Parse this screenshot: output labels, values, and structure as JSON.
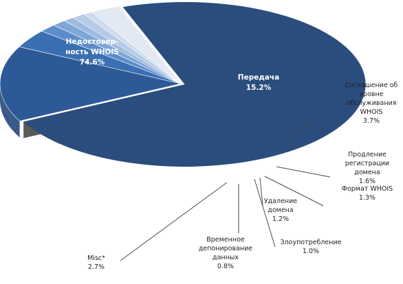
{
  "chart_data": {
    "type": "pie",
    "title": "",
    "style": "3d-exploded",
    "slices": [
      {
        "label_lines": [
          "Недостовер-",
          "ность WHOIS",
          "74.6%"
        ],
        "value": 74.6,
        "color": "#2b4d7e"
      },
      {
        "label_lines": [
          "Передача",
          "15.2%"
        ],
        "value": 15.2,
        "color": "#2d5a96"
      },
      {
        "label_lines": [
          "Соглашение об",
          "уровне",
          "обслуживания",
          "WHOIS",
          "3.7%"
        ],
        "value": 3.7,
        "color": "#3b6fb3"
      },
      {
        "label_lines": [
          "Продление",
          "регистрации",
          "домена",
          "1.6%"
        ],
        "value": 1.6,
        "color": "#5c8dc8"
      },
      {
        "label_lines": [
          "Формат WHOIS",
          "1.3%"
        ],
        "value": 1.3,
        "color": "#7fa6d6"
      },
      {
        "label_lines": [
          "Злоупотребление",
          "1.0%"
        ],
        "value": 1.0,
        "color": "#9dbbe0"
      },
      {
        "label_lines": [
          "Удаление",
          "домена",
          "1.2%"
        ],
        "value": 1.2,
        "color": "#b6cbe7"
      },
      {
        "label_lines": [
          "Временное",
          "депонирование",
          "данных",
          "0.8%"
        ],
        "value": 0.8,
        "color": "#cddbee"
      },
      {
        "label_lines": [
          "Misc*",
          "2.7%"
        ],
        "value": 2.7,
        "color": "#e2e9f3"
      }
    ]
  }
}
